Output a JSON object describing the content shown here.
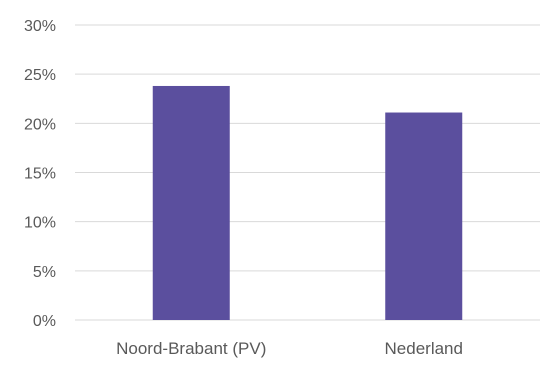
{
  "chart_data": {
    "type": "bar",
    "title": "",
    "xlabel": "",
    "ylabel": "",
    "categories": [
      "Noord-Brabant (PV)",
      "Nederland"
    ],
    "values": [
      0.238,
      0.211
    ],
    "ylim": [
      0,
      0.3
    ],
    "yticks": [
      0,
      0.05,
      0.1,
      0.15,
      0.2,
      0.25,
      0.3
    ],
    "ytick_labels": [
      "0%",
      "5%",
      "10%",
      "15%",
      "20%",
      "25%",
      "30%"
    ],
    "grid": true,
    "legend": "none",
    "colors": {
      "bar": "#5b4f9e",
      "grid": "#d9d9d9",
      "text": "#595959"
    }
  }
}
